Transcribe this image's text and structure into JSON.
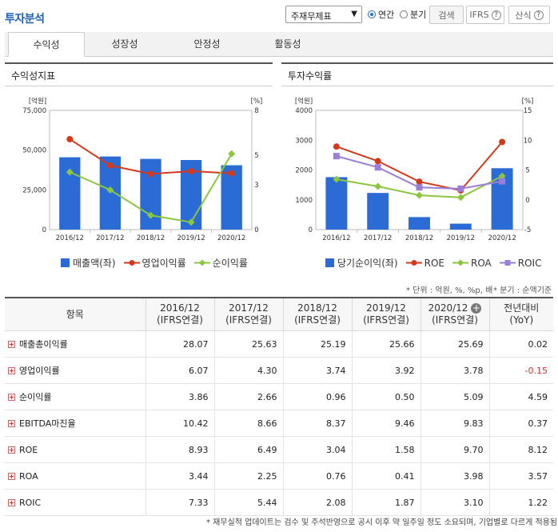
{
  "header": {
    "title": "투자분석",
    "statement_select": "주재무제표",
    "radio_annual": "연간",
    "radio_quarter": "분기",
    "search_button": "검색",
    "ifrs_button": "IFRS",
    "formula_button": "산식"
  },
  "tabs": [
    "수익성",
    "성장성",
    "안정성",
    "활동성"
  ],
  "active_tab": "수익성",
  "chart_data": [
    {
      "type": "bar+line",
      "title": "수익성지표",
      "categories": [
        "2016/12",
        "2017/12",
        "2018/12",
        "2019/12",
        "2020/12"
      ],
      "left_axis": {
        "label": "[억원]",
        "ylim": [
          0,
          75000
        ],
        "ticks": [
          "75,000",
          "50,000",
          "25,000",
          "0"
        ]
      },
      "right_axis": {
        "label": "[%]",
        "ylim": [
          0,
          8
        ],
        "ticks": [
          "8",
          "5",
          "3",
          "0"
        ]
      },
      "series": [
        {
          "name": "매출액(좌)",
          "type": "bar",
          "axis": "left",
          "color": "#2a6bd6",
          "values": [
            45500,
            46000,
            44500,
            43800,
            40500
          ]
        },
        {
          "name": "영업이익률",
          "type": "line",
          "axis": "right",
          "color": "#d23a1e",
          "values": [
            6.07,
            4.3,
            3.74,
            3.92,
            3.78
          ]
        },
        {
          "name": "순이익률",
          "type": "line",
          "axis": "right",
          "color": "#8cc63f",
          "values": [
            3.86,
            2.66,
            0.96,
            0.5,
            5.09
          ]
        }
      ]
    },
    {
      "type": "bar+line",
      "title": "투자수익률",
      "categories": [
        "2016/12",
        "2017/12",
        "2018/12",
        "2019/12",
        "2020/12"
      ],
      "left_axis": {
        "label": "[억원]",
        "ylim": [
          0,
          4000
        ],
        "ticks": [
          "4000",
          "3000",
          "2000",
          "1000",
          "0"
        ]
      },
      "right_axis": {
        "label": "[%]",
        "ylim": [
          -5,
          15
        ],
        "ticks": [
          "15",
          "10",
          "5",
          "0",
          "-5"
        ]
      },
      "series": [
        {
          "name": "당기순이익(좌)",
          "type": "bar",
          "axis": "left",
          "color": "#2a6bd6",
          "values": [
            1760,
            1230,
            420,
            200,
            2060
          ]
        },
        {
          "name": "ROE",
          "type": "line",
          "axis": "right",
          "color": "#d23a1e",
          "values": [
            8.93,
            6.49,
            3.04,
            1.58,
            9.7
          ]
        },
        {
          "name": "ROA",
          "type": "line",
          "axis": "right",
          "color": "#8cc63f",
          "values": [
            3.44,
            2.25,
            0.76,
            0.41,
            3.98
          ]
        },
        {
          "name": "ROIC",
          "type": "line",
          "axis": "right",
          "color": "#9b7fd6",
          "values": [
            7.33,
            5.44,
            2.08,
            1.87,
            3.1
          ]
        }
      ]
    }
  ],
  "notes": {
    "unit": "* 단위 : 억원, %, %p, 배",
    "quarter": "* 분기 : 순액기준",
    "footer": "* 재무실적 업데이트는 검수 및 주석반영으로 공시 이후 약 일주일 정도 소요되며, 기업별로 다르게 적용됨"
  },
  "table": {
    "header": [
      {
        "l1": "항목",
        "l2": ""
      },
      {
        "l1": "2016/12",
        "l2": "(IFRS연결)"
      },
      {
        "l1": "2017/12",
        "l2": "(IFRS연결)"
      },
      {
        "l1": "2018/12",
        "l2": "(IFRS연결)"
      },
      {
        "l1": "2019/12",
        "l2": "(IFRS연결)"
      },
      {
        "l1": "2020/12",
        "l2": "(IFRS연결)"
      },
      {
        "l1": "전년대비",
        "l2": "(YoY)"
      }
    ],
    "rows": [
      {
        "name": "매출총이익률",
        "cells": [
          "28.07",
          "25.63",
          "25.19",
          "25.66",
          "25.69",
          "0.02"
        ]
      },
      {
        "name": "영업이익률",
        "cells": [
          "6.07",
          "4.30",
          "3.74",
          "3.92",
          "3.78",
          "-0.15"
        ]
      },
      {
        "name": "순이익률",
        "cells": [
          "3.86",
          "2.66",
          "0.96",
          "0.50",
          "5.09",
          "4.59"
        ]
      },
      {
        "name": "EBITDA마진율",
        "cells": [
          "10.42",
          "8.66",
          "8.37",
          "9.46",
          "9.83",
          "0.37"
        ]
      },
      {
        "name": "ROE",
        "cells": [
          "8.93",
          "6.49",
          "3.04",
          "1.58",
          "9.70",
          "8.12"
        ]
      },
      {
        "name": "ROA",
        "cells": [
          "3.44",
          "2.25",
          "0.76",
          "0.41",
          "3.98",
          "3.57"
        ]
      },
      {
        "name": "ROIC",
        "cells": [
          "7.33",
          "5.44",
          "2.08",
          "1.87",
          "3.10",
          "1.22"
        ]
      }
    ]
  }
}
